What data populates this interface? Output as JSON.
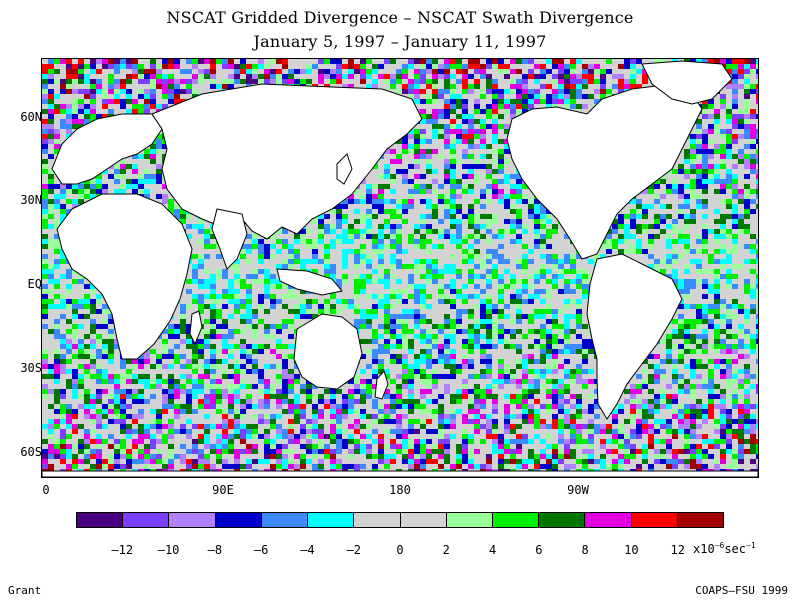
{
  "title": {
    "line1": "NSCAT Gridded Divergence – NSCAT Swath Divergence",
    "line2": "January 5, 1997 – January 11, 1997"
  },
  "map": {
    "lat_labels": [
      "60N",
      "30N",
      "EQ",
      "30S",
      "60S"
    ],
    "lon_labels": [
      "0",
      "90E",
      "180",
      "90W"
    ],
    "land_color": "#ffffff",
    "coastline_color": "#000000"
  },
  "colorbar": {
    "colors": [
      "#4b0082",
      "#7b3fff",
      "#b080ff",
      "#0000cd",
      "#3a8bff",
      "#00ffff",
      "#d3d3d3",
      "#d3d3d3",
      "#9aff9a",
      "#00ee00",
      "#007800",
      "#e000e0",
      "#ff0000",
      "#a00000"
    ],
    "tick_labels": [
      "–12",
      "–10",
      "–8",
      "–6",
      "–4",
      "–2",
      "0",
      "2",
      "4",
      "6",
      "8",
      "10",
      "12"
    ],
    "units_base": "x10",
    "units_exp": "–6",
    "units_tail": "sec",
    "units_tail_exp": "–1"
  },
  "footer": {
    "left": "Grant",
    "right": "COAPS–FSU 1999"
  }
}
